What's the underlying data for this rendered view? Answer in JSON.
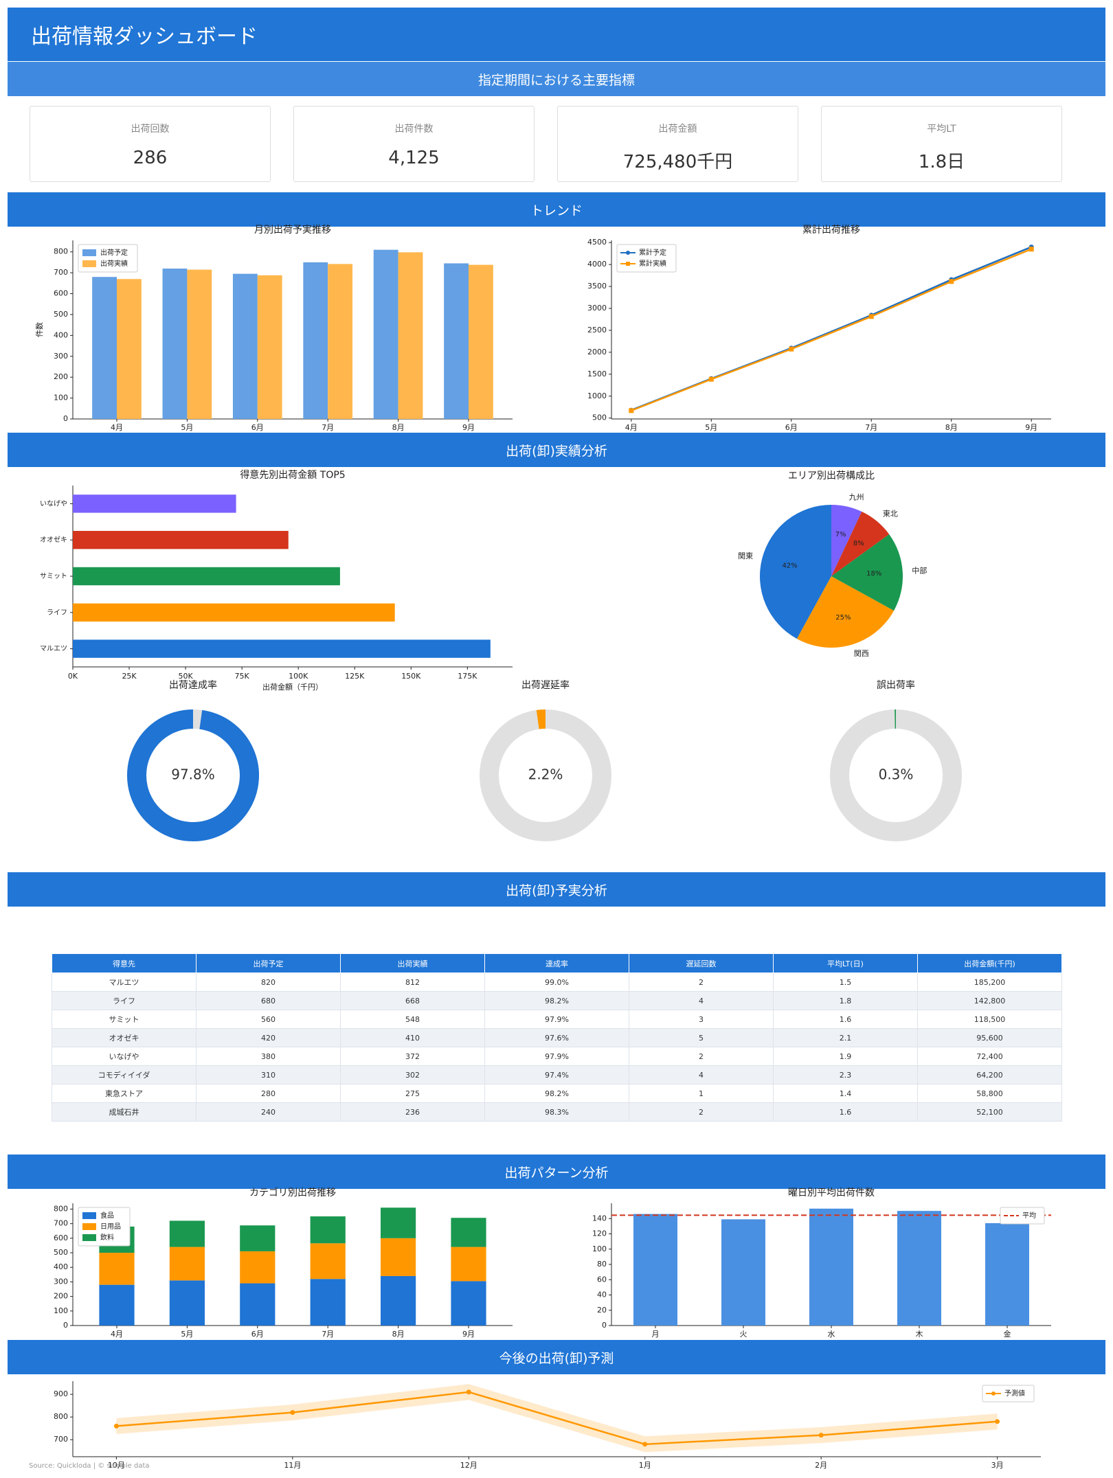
{
  "header": {
    "title": "出荷情報ダッシュボード"
  },
  "sections": [
    "指定期間における主要指標",
    "トレンド",
    "出荷(卸)実績分析",
    "出荷(卸)予実分析",
    "出荷パターン分析",
    "今後の出荷(卸)予測"
  ],
  "kpis": [
    {
      "label": "出荷回数",
      "value": "286"
    },
    {
      "label": "出荷件数",
      "value": "4,125"
    },
    {
      "label": "出荷金額",
      "value": "725,480千円"
    },
    {
      "label": "平均LT",
      "value": "1.8日"
    }
  ],
  "table": {
    "columns": [
      "得意先",
      "出荷予定",
      "出荷実績",
      "達成率",
      "遅延回数",
      "平均LT(日)",
      "出荷金額(千円)"
    ],
    "rows": [
      [
        "マルエツ",
        "820",
        "812",
        "99.0%",
        "2",
        "1.5",
        "185,200"
      ],
      [
        "ライフ",
        "680",
        "668",
        "98.2%",
        "4",
        "1.8",
        "142,800"
      ],
      [
        "サミット",
        "560",
        "548",
        "97.9%",
        "3",
        "1.6",
        "118,500"
      ],
      [
        "オオゼキ",
        "420",
        "410",
        "97.6%",
        "5",
        "2.1",
        "95,600"
      ],
      [
        "いなげや",
        "380",
        "372",
        "97.9%",
        "2",
        "1.9",
        "72,400"
      ],
      [
        "コモディイイダ",
        "310",
        "302",
        "97.4%",
        "4",
        "2.3",
        "64,200"
      ],
      [
        "東急ストア",
        "280",
        "275",
        "98.2%",
        "1",
        "1.4",
        "58,800"
      ],
      [
        "成城石井",
        "240",
        "236",
        "98.3%",
        "2",
        "1.6",
        "52,100"
      ]
    ]
  },
  "chart_data": [
    {
      "type": "bar",
      "title": "月別出荷予実推移",
      "y_label": "件数",
      "categories": [
        "4月",
        "5月",
        "6月",
        "7月",
        "8月",
        "9月"
      ],
      "series": [
        {
          "name": "出荷予定",
          "color": "#64a0e3",
          "values": [
            680,
            720,
            695,
            750,
            810,
            745
          ]
        },
        {
          "name": "出荷実績",
          "color": "#ffb74d",
          "values": [
            670,
            715,
            688,
            742,
            798,
            738
          ]
        }
      ],
      "ylim": [
        0,
        855
      ],
      "yticks": [
        0,
        100,
        200,
        300,
        400,
        500,
        600,
        700,
        800
      ],
      "legend": "upper left"
    },
    {
      "type": "line",
      "title": "累計出荷推移",
      "categories": [
        "4月",
        "5月",
        "6月",
        "7月",
        "8月",
        "9月"
      ],
      "series": [
        {
          "name": "累計予定",
          "color": "#1f6fc0",
          "marker": "circle",
          "values": [
            680,
            1400,
            2095,
            2845,
            3655,
            4400
          ]
        },
        {
          "name": "累計実績",
          "color": "#ff9800",
          "marker": "square",
          "values": [
            670,
            1385,
            2073,
            2815,
            3613,
            4351
          ]
        }
      ],
      "ylim": [
        480,
        4550
      ],
      "yticks": [
        500,
        1000,
        1500,
        2000,
        2500,
        3000,
        3500,
        4000,
        4500
      ],
      "legend": "upper left"
    },
    {
      "type": "hbar",
      "title": "得意先別出荷金額 TOP5",
      "x_label": "出荷金額（千円）",
      "categories": [
        "マルエツ",
        "ライフ",
        "サミット",
        "オオゼキ",
        "いなげや"
      ],
      "values": [
        185200,
        142800,
        118500,
        95600,
        72400
      ],
      "colors": [
        "#1f74d4",
        "#ff9800",
        "#1a9850",
        "#d4351c",
        "#7b61ff"
      ],
      "xlim": [
        0,
        195000
      ],
      "xticks": [
        {
          "value": 0,
          "label": "0K"
        },
        {
          "value": 25000,
          "label": "25K"
        },
        {
          "value": 50000,
          "label": "50K"
        },
        {
          "value": 75000,
          "label": "75K"
        },
        {
          "value": 100000,
          "label": "100K"
        },
        {
          "value": 125000,
          "label": "125K"
        },
        {
          "value": 150000,
          "label": "150K"
        },
        {
          "value": 175000,
          "label": "175K"
        }
      ]
    },
    {
      "type": "pie",
      "title": "エリア別出荷構成比",
      "categories": [
        "関東",
        "関西",
        "中部",
        "東北",
        "九州"
      ],
      "values": [
        42,
        25,
        18,
        8,
        7
      ],
      "value_labels": [
        "42%",
        "25%",
        "18%",
        "8%",
        "7%"
      ],
      "colors": [
        "#1f74d4",
        "#ff9800",
        "#1a9850",
        "#d4351c",
        "#7b61ff"
      ],
      "start_angle": 90
    },
    {
      "type": "donut",
      "title": "出荷達成率",
      "values": [
        97.8
      ],
      "value_labels": [
        "97.8%"
      ],
      "range": [
        0,
        100
      ],
      "color": "#1f74d4",
      "track_color": "#e0e0e0"
    },
    {
      "type": "donut",
      "title": "出荷遅延率",
      "values": [
        2.2
      ],
      "value_labels": [
        "2.2%"
      ],
      "range": [
        0,
        100
      ],
      "color": "#ff9800",
      "track_color": "#e0e0e0"
    },
    {
      "type": "donut",
      "title": "誤出荷率",
      "values": [
        0.3
      ],
      "value_labels": [
        "0.3%"
      ],
      "range": [
        0,
        100
      ],
      "color": "#1a9850",
      "track_color": "#e0e0e0"
    },
    {
      "type": "bar",
      "title": "カテゴリ別出荷推移",
      "stacked": true,
      "categories": [
        "4月",
        "5月",
        "6月",
        "7月",
        "8月",
        "9月"
      ],
      "series": [
        {
          "name": "食品",
          "color": "#1f74d4",
          "values": [
            280,
            310,
            290,
            320,
            340,
            305
          ]
        },
        {
          "name": "日用品",
          "color": "#ff9800",
          "values": [
            220,
            230,
            220,
            245,
            260,
            235
          ]
        },
        {
          "name": "飲料",
          "color": "#1a9850",
          "values": [
            180,
            180,
            178,
            185,
            210,
            200
          ]
        }
      ],
      "ylim": [
        0,
        840
      ],
      "yticks": [
        0,
        100,
        200,
        300,
        400,
        500,
        600,
        700,
        800
      ],
      "legend": "upper left"
    },
    {
      "type": "bar",
      "title": "曜日別平均出荷件数",
      "categories": [
        "月",
        "火",
        "水",
        "木",
        "金"
      ],
      "series": [
        {
          "color": "#4a90e2",
          "values": [
            146,
            139,
            153,
            150,
            134
          ]
        }
      ],
      "reference_line": {
        "name": "平均",
        "value": 144.4,
        "color": "#d4351c"
      },
      "ylim": [
        0,
        160
      ],
      "yticks": [
        0,
        20,
        40,
        60,
        80,
        100,
        120,
        140
      ],
      "legend": "upper right"
    },
    {
      "type": "line",
      "categories": [
        "10月",
        "11月",
        "12月",
        "1月",
        "2月",
        "3月"
      ],
      "series": [
        {
          "name": "予測値",
          "color": "#ff9800",
          "marker": "circle",
          "values": [
            760,
            820,
            910,
            680,
            720,
            780
          ]
        }
      ],
      "band": {
        "color": "#ff9800",
        "lower": [
          725,
          785,
          875,
          645,
          685,
          745
        ],
        "upper": [
          795,
          855,
          945,
          715,
          755,
          815
        ]
      },
      "ylim": [
        625,
        958
      ],
      "yticks": [
        700,
        800,
        900
      ],
      "legend": "upper right"
    }
  ],
  "footer": "Source: Quickloda | © sample data"
}
